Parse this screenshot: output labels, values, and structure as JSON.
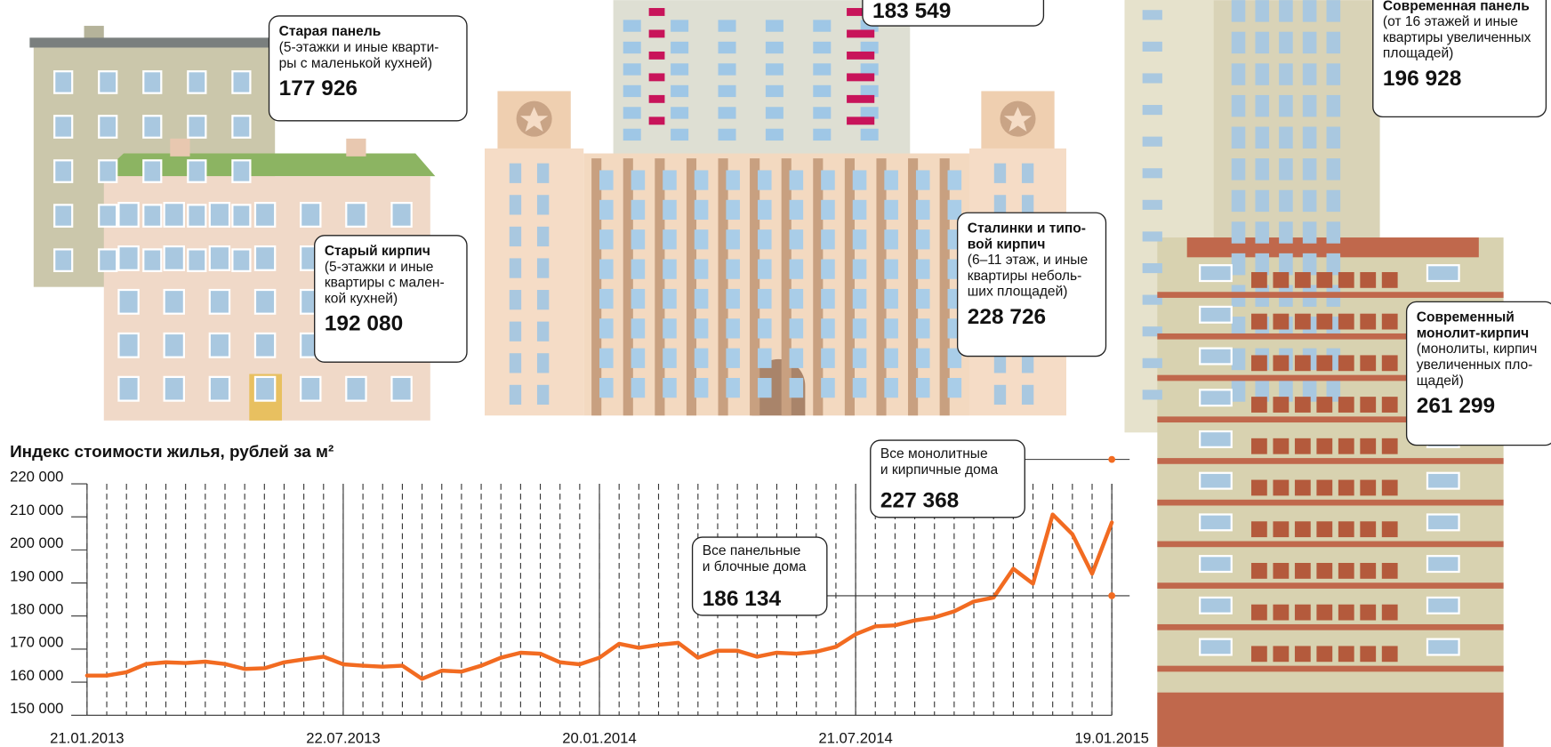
{
  "chart_data": {
    "type": "line",
    "title": "Индекс стоимости жилья, рублей за м²",
    "x": [
      "21.01.2013",
      "04.02.2013",
      "18.02.2013",
      "04.03.2013",
      "18.03.2013",
      "01.04.2013",
      "15.04.2013",
      "29.04.2013",
      "13.05.2013",
      "27.05.2013",
      "10.06.2013",
      "24.06.2013",
      "08.07.2013",
      "22.07.2013",
      "05.08.2013",
      "19.08.2013",
      "02.09.2013",
      "16.09.2013",
      "30.09.2013",
      "14.10.2013",
      "28.10.2013",
      "11.11.2013",
      "25.11.2013",
      "09.12.2013",
      "23.12.2013",
      "06.01.2014",
      "20.01.2014",
      "03.02.2014",
      "17.02.2014",
      "03.03.2014",
      "17.03.2014",
      "31.03.2014",
      "14.04.2014",
      "28.04.2014",
      "12.05.2014",
      "26.05.2014",
      "09.06.2014",
      "23.06.2014",
      "07.07.2014",
      "21.07.2014",
      "04.08.2014",
      "18.08.2014",
      "01.09.2014",
      "15.09.2014",
      "29.09.2014",
      "13.10.2014",
      "27.10.2014",
      "10.11.2014",
      "24.11.2014",
      "08.12.2014",
      "22.12.2014",
      "05.01.2015",
      "19.01.2015"
    ],
    "values": [
      162000,
      162000,
      163000,
      165500,
      166000,
      165800,
      166200,
      165500,
      164000,
      164200,
      166000,
      166900,
      167700,
      165400,
      165000,
      164700,
      165000,
      161000,
      163500,
      163200,
      165000,
      167400,
      168900,
      168600,
      166000,
      165400,
      167400,
      171600,
      170400,
      171300,
      171900,
      167400,
      169500,
      169500,
      167700,
      168900,
      168600,
      169200,
      170700,
      174500,
      176900,
      177200,
      178700,
      179600,
      181400,
      184400,
      185600,
      194300,
      189800,
      210700,
      204700,
      192800,
      208300
    ],
    "color": "#f26b21",
    "xlim": [
      "21.01.2013",
      "19.01.2015"
    ],
    "xticks": [
      "21.01.2013",
      "22.07.2013",
      "20.01.2014",
      "21.07.2014",
      "19.01.2015"
    ],
    "ylim": [
      150000,
      220000
    ],
    "yticks": [
      {
        "value": 150000,
        "label": "150 000"
      },
      {
        "value": 160000,
        "label": "160 000"
      },
      {
        "value": 170000,
        "label": "170 000"
      },
      {
        "value": 180000,
        "label": "180 000"
      },
      {
        "value": 190000,
        "label": "190 000"
      },
      {
        "value": 200000,
        "label": "200 000"
      },
      {
        "value": 210000,
        "label": "210 000"
      },
      {
        "value": 220000,
        "label": "220 000"
      }
    ],
    "annotations": [
      {
        "lines": [
          "Все монолитные",
          "и кирпичные дома"
        ],
        "value": 227368,
        "label": "227 368"
      },
      {
        "lines": [
          "Все панельные",
          "и блочные дома"
        ],
        "value": 186134,
        "label": "186 134"
      }
    ]
  },
  "callouts": [
    {
      "title_lines": [
        "Старая панель"
      ],
      "lines": [
        "(5-этажки и иные кварти-",
        "ры с маленькой кухней)"
      ],
      "value": "177 926"
    },
    {
      "title_lines": [
        "Старый кирпич"
      ],
      "lines": [
        "(5-этажки и иные",
        "квартиры с мален-",
        "кой кухней)"
      ],
      "value": "192 080"
    },
    {
      "title_lines": [],
      "lines": [],
      "value": "183 549"
    },
    {
      "title_lines": [
        "Сталинки и типо-",
        "вой кирпич"
      ],
      "lines": [
        "(6–11 этаж, и иные",
        "квартиры неболь-",
        "ших площадей)"
      ],
      "value": "228 726"
    },
    {
      "title_lines": [
        "Современная панель"
      ],
      "lines": [
        "(от 16 этажей и иные",
        "квартиры увеличенных",
        "площадей)"
      ],
      "value": "196 928"
    },
    {
      "title_lines": [
        "Современный",
        "монолит-кирпич"
      ],
      "lines": [
        "(монолиты, кирпич",
        "увеличенных пло-",
        "щадей)"
      ],
      "value": "261 299"
    }
  ]
}
